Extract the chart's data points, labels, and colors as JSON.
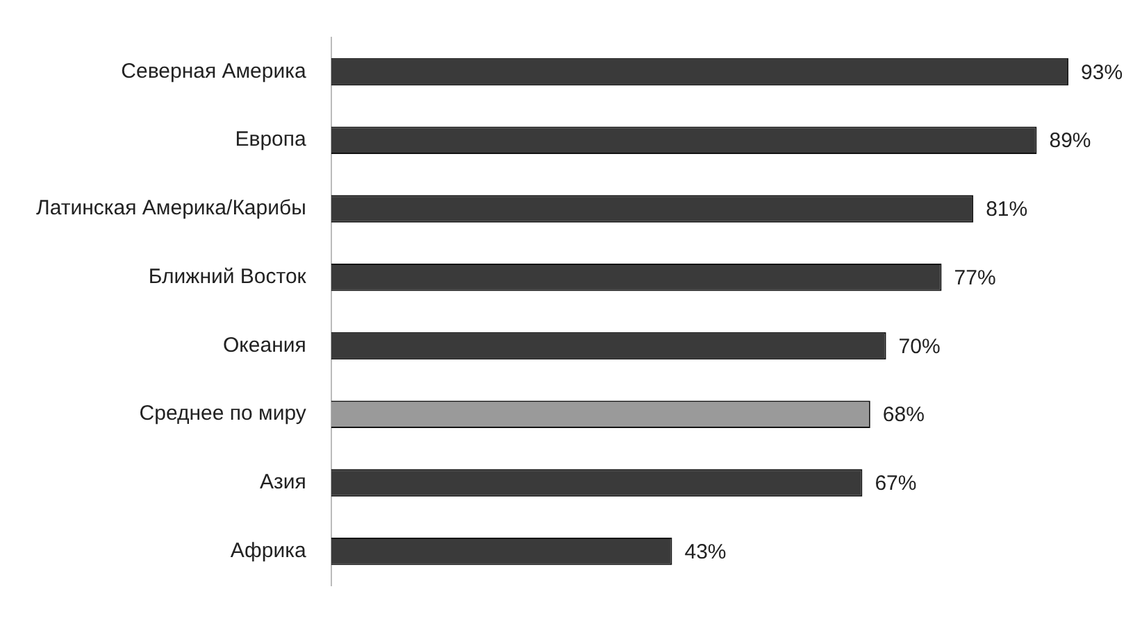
{
  "chart_data": {
    "type": "bar",
    "orientation": "horizontal",
    "categories": [
      "Северная Америка",
      "Европа",
      "Латинская Америка/Карибы",
      "Ближний Восток",
      "Океания",
      "Среднее по миру",
      "Азия",
      "Африка"
    ],
    "values": [
      93,
      89,
      81,
      77,
      70,
      68,
      67,
      43
    ],
    "colors": [
      "#3a3a3a",
      "#3a3a3a",
      "#3a3a3a",
      "#3a3a3a",
      "#3a3a3a",
      "#9a9a9a",
      "#3a3a3a",
      "#3a3a3a"
    ],
    "value_labels": [
      "93%",
      "89%",
      "81%",
      "77%",
      "70%",
      "68%",
      "67%",
      "43%"
    ],
    "legend": false,
    "tick_labels": "y"
  }
}
